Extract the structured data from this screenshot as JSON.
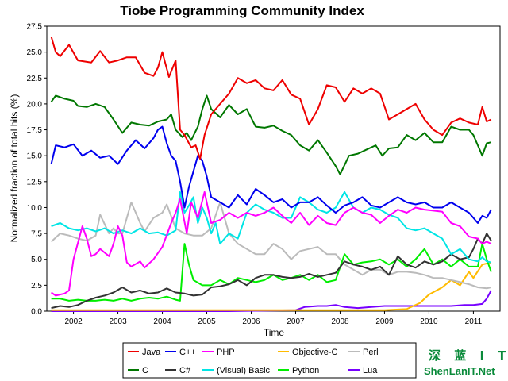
{
  "watermark": {
    "cn": "深 蓝 I T",
    "en": "ShenLanIT.Net"
  },
  "chart_data": {
    "type": "line",
    "title": "Tiobe Programming Community Index",
    "xlabel": "Time",
    "ylabel": "Normalized fraction of total hits (%)",
    "xlim": [
      2001.4,
      2011.6
    ],
    "ylim": [
      0,
      27.5
    ],
    "xticks": [
      2002,
      2003,
      2004,
      2005,
      2006,
      2007,
      2008,
      2009,
      2010,
      2011
    ],
    "xtick_labels": [
      "2002",
      "2003",
      "2004",
      "2005",
      "2006",
      "2007",
      "2008",
      "2009",
      "2010",
      "2011"
    ],
    "yticks": [
      0,
      2.5,
      5,
      7.5,
      10,
      12.5,
      15,
      17.5,
      20,
      22.5,
      25,
      27.5
    ],
    "ytick_labels": [
      "0.0",
      "2.5",
      "5.0",
      "7.5",
      "10.0",
      "12.5",
      "15.0",
      "17.5",
      "20.0",
      "22.5",
      "25.0",
      "27.5"
    ],
    "grid": false,
    "legend_position": "bottom",
    "series": [
      {
        "name": "Java",
        "color": "#ee0000",
        "x": [
          2001.5,
          2001.6,
          2001.7,
          2001.9,
          2002.1,
          2002.4,
          2002.6,
          2002.8,
          2003.0,
          2003.2,
          2003.4,
          2003.6,
          2003.8,
          2003.9,
          2004.0,
          2004.15,
          2004.3,
          2004.4,
          2004.5,
          2004.65,
          2004.75,
          2004.85,
          2004.95,
          2005.1,
          2005.3,
          2005.5,
          2005.7,
          2005.9,
          2006.1,
          2006.3,
          2006.5,
          2006.7,
          2006.9,
          2007.1,
          2007.3,
          2007.5,
          2007.7,
          2007.9,
          2008.1,
          2008.3,
          2008.5,
          2008.7,
          2008.9,
          2009.1,
          2009.3,
          2009.5,
          2009.7,
          2009.9,
          2010.1,
          2010.3,
          2010.5,
          2010.7,
          2010.9,
          2011.1,
          2011.2,
          2011.3,
          2011.4
        ],
        "y": [
          26.5,
          25.0,
          24.6,
          25.7,
          24.2,
          24.0,
          25.1,
          24.0,
          24.2,
          24.5,
          24.5,
          23.0,
          22.7,
          23.5,
          25.0,
          22.6,
          24.2,
          17.5,
          17.0,
          15.8,
          16.0,
          14.7,
          17.0,
          19.0,
          20.0,
          21.0,
          22.5,
          22.0,
          22.3,
          21.5,
          21.3,
          22.3,
          20.9,
          20.5,
          18.0,
          19.5,
          21.8,
          21.6,
          20.2,
          21.5,
          21.0,
          21.5,
          21.0,
          18.5,
          19.0,
          19.5,
          20.0,
          18.5,
          17.5,
          17.0,
          18.2,
          18.6,
          18.2,
          18.0,
          19.7,
          18.3,
          18.5
        ]
      },
      {
        "name": "C",
        "color": "#007700",
        "x": [
          2001.5,
          2001.6,
          2001.8,
          2002.0,
          2002.1,
          2002.3,
          2002.5,
          2002.7,
          2002.9,
          2003.1,
          2003.3,
          2003.5,
          2003.7,
          2003.9,
          2004.1,
          2004.2,
          2004.3,
          2004.45,
          2004.55,
          2004.65,
          2004.8,
          2004.9,
          2005.0,
          2005.1,
          2005.3,
          2005.5,
          2005.7,
          2005.9,
          2006.1,
          2006.3,
          2006.5,
          2006.7,
          2006.9,
          2007.1,
          2007.3,
          2007.5,
          2007.7,
          2007.9,
          2008.0,
          2008.2,
          2008.4,
          2008.6,
          2008.8,
          2008.95,
          2009.1,
          2009.3,
          2009.5,
          2009.7,
          2009.9,
          2010.1,
          2010.3,
          2010.5,
          2010.7,
          2010.9,
          2011.0,
          2011.1,
          2011.2,
          2011.3,
          2011.4
        ],
        "y": [
          20.2,
          20.8,
          20.5,
          20.3,
          19.8,
          19.7,
          20.0,
          19.7,
          18.5,
          17.2,
          18.2,
          18.0,
          17.9,
          18.3,
          18.5,
          19.0,
          17.5,
          16.8,
          17.2,
          16.5,
          17.8,
          19.5,
          20.8,
          19.5,
          18.7,
          19.9,
          19.0,
          19.5,
          17.8,
          17.7,
          17.9,
          17.4,
          17.0,
          16.0,
          15.5,
          16.5,
          15.3,
          14.0,
          13.2,
          15.0,
          15.2,
          15.6,
          16.0,
          15.0,
          15.7,
          15.8,
          17.0,
          16.5,
          17.2,
          16.3,
          16.3,
          17.8,
          17.5,
          17.5,
          17.0,
          16.0,
          15.0,
          16.2,
          16.3
        ]
      },
      {
        "name": "C++",
        "color": "#0000ee",
        "x": [
          2001.5,
          2001.6,
          2001.8,
          2002.0,
          2002.2,
          2002.4,
          2002.6,
          2002.8,
          2003.0,
          2003.2,
          2003.4,
          2003.6,
          2003.8,
          2003.9,
          2004.0,
          2004.1,
          2004.2,
          2004.3,
          2004.4,
          2004.5,
          2004.6,
          2004.7,
          2004.8,
          2004.9,
          2005.0,
          2005.1,
          2005.3,
          2005.5,
          2005.7,
          2005.9,
          2006.1,
          2006.3,
          2006.5,
          2006.7,
          2006.9,
          2007.1,
          2007.3,
          2007.5,
          2007.7,
          2007.9,
          2008.1,
          2008.3,
          2008.5,
          2008.7,
          2008.9,
          2009.1,
          2009.3,
          2009.5,
          2009.7,
          2009.9,
          2010.1,
          2010.3,
          2010.5,
          2010.7,
          2010.9,
          2011.1,
          2011.2,
          2011.3,
          2011.4
        ],
        "y": [
          14.2,
          16.0,
          15.8,
          16.1,
          15.0,
          15.5,
          14.8,
          15.0,
          14.2,
          15.5,
          16.5,
          15.7,
          16.7,
          17.5,
          17.8,
          16.2,
          15.0,
          14.5,
          12.5,
          10.0,
          12.0,
          13.5,
          15.0,
          14.5,
          13.0,
          11.0,
          10.5,
          10.0,
          11.2,
          10.3,
          11.8,
          11.2,
          10.5,
          10.8,
          10.0,
          10.5,
          10.5,
          11.0,
          10.2,
          9.5,
          10.2,
          10.5,
          11.0,
          10.2,
          10.0,
          10.5,
          11.0,
          10.5,
          10.3,
          10.5,
          10.0,
          10.0,
          10.5,
          10.0,
          9.5,
          8.5,
          9.2,
          9.0,
          9.8
        ]
      },
      {
        "name": "C#",
        "color": "#333333",
        "x": [
          2001.5,
          2001.7,
          2001.9,
          2002.1,
          2002.3,
          2002.5,
          2002.7,
          2002.9,
          2003.1,
          2003.3,
          2003.5,
          2003.7,
          2003.9,
          2004.1,
          2004.3,
          2004.5,
          2004.7,
          2004.9,
          2005.1,
          2005.3,
          2005.5,
          2005.7,
          2005.9,
          2006.1,
          2006.3,
          2006.5,
          2006.7,
          2006.9,
          2007.1,
          2007.3,
          2007.5,
          2007.7,
          2007.9,
          2008.1,
          2008.3,
          2008.5,
          2008.7,
          2008.9,
          2009.1,
          2009.3,
          2009.5,
          2009.7,
          2009.9,
          2010.1,
          2010.3,
          2010.5,
          2010.7,
          2010.9,
          2011.0,
          2011.1,
          2011.2,
          2011.3,
          2011.4
        ],
        "y": [
          0.3,
          0.5,
          0.4,
          0.6,
          1.0,
          1.3,
          1.5,
          1.8,
          2.3,
          1.8,
          2.0,
          1.7,
          1.8,
          2.2,
          1.8,
          1.7,
          1.5,
          1.6,
          2.3,
          2.4,
          2.6,
          3.0,
          2.5,
          3.2,
          3.5,
          3.5,
          3.3,
          3.2,
          3.3,
          3.6,
          3.3,
          3.5,
          3.7,
          4.8,
          4.5,
          4.3,
          4.0,
          4.3,
          3.5,
          5.3,
          4.5,
          4.2,
          4.8,
          4.5,
          4.8,
          5.5,
          5.0,
          5.2,
          6.0,
          7.0,
          6.5,
          7.5,
          6.8
        ]
      },
      {
        "name": "PHP",
        "color": "#ff00ff",
        "x": [
          2001.5,
          2001.6,
          2001.8,
          2001.9,
          2002.0,
          2002.2,
          2002.3,
          2002.4,
          2002.5,
          2002.6,
          2002.8,
          2002.9,
          2003.0,
          2003.1,
          2003.2,
          2003.3,
          2003.5,
          2003.6,
          2003.8,
          2004.0,
          2004.2,
          2004.3,
          2004.4,
          2004.55,
          2004.65,
          2004.8,
          2004.95,
          2005.1,
          2005.3,
          2005.5,
          2005.7,
          2005.9,
          2006.1,
          2006.3,
          2006.5,
          2006.7,
          2006.9,
          2007.1,
          2007.3,
          2007.5,
          2007.7,
          2007.9,
          2008.1,
          2008.3,
          2008.5,
          2008.7,
          2008.9,
          2009.1,
          2009.3,
          2009.5,
          2009.7,
          2009.9,
          2010.1,
          2010.3,
          2010.5,
          2010.7,
          2010.9,
          2011.1,
          2011.2,
          2011.3,
          2011.4
        ],
        "y": [
          1.8,
          1.5,
          1.7,
          2.0,
          5.0,
          8.2,
          7.0,
          5.3,
          5.5,
          6.0,
          5.3,
          6.5,
          8.2,
          7.3,
          4.7,
          4.3,
          4.8,
          4.2,
          5.0,
          6.2,
          8.5,
          9.5,
          10.8,
          7.5,
          10.5,
          9.0,
          11.5,
          8.5,
          8.8,
          9.5,
          9.0,
          9.5,
          9.2,
          9.5,
          10.0,
          9.2,
          8.5,
          9.5,
          8.3,
          9.2,
          8.5,
          8.3,
          9.5,
          10.0,
          9.5,
          9.3,
          8.5,
          9.2,
          9.8,
          9.5,
          10.0,
          9.8,
          9.7,
          9.6,
          8.5,
          8.2,
          7.2,
          7.0,
          6.5,
          6.7,
          6.5
        ]
      },
      {
        "name": "(Visual) Basic",
        "color": "#00e5e5",
        "x": [
          2001.5,
          2001.7,
          2001.9,
          2002.1,
          2002.3,
          2002.5,
          2002.7,
          2002.9,
          2003.1,
          2003.3,
          2003.5,
          2003.7,
          2003.9,
          2004.1,
          2004.3,
          2004.4,
          2004.5,
          2004.6,
          2004.7,
          2004.8,
          2004.9,
          2005.0,
          2005.1,
          2005.2,
          2005.3,
          2005.5,
          2005.7,
          2005.9,
          2006.1,
          2006.3,
          2006.5,
          2006.7,
          2006.9,
          2007.1,
          2007.3,
          2007.5,
          2007.7,
          2007.9,
          2008.1,
          2008.3,
          2008.5,
          2008.7,
          2008.9,
          2009.1,
          2009.3,
          2009.5,
          2009.7,
          2009.9,
          2010.1,
          2010.3,
          2010.5,
          2010.7,
          2010.9,
          2011.1,
          2011.2,
          2011.3,
          2011.4
        ],
        "y": [
          8.2,
          8.5,
          8.0,
          7.8,
          8.0,
          7.7,
          8.0,
          7.5,
          7.8,
          7.5,
          8.0,
          7.5,
          7.6,
          7.3,
          7.8,
          11.5,
          9.5,
          10.2,
          11.0,
          8.5,
          10.0,
          9.0,
          7.5,
          8.5,
          6.5,
          7.5,
          7.0,
          9.5,
          10.3,
          9.8,
          9.5,
          9.0,
          9.0,
          11.0,
          10.5,
          9.8,
          9.5,
          10.0,
          11.5,
          10.0,
          9.5,
          10.0,
          9.8,
          9.3,
          9.0,
          8.0,
          7.8,
          8.0,
          7.5,
          7.0,
          5.5,
          6.0,
          5.0,
          4.8,
          5.2,
          4.8,
          4.7
        ]
      },
      {
        "name": "Objective-C",
        "color": "#ffbb00",
        "x": [
          2001.5,
          2002.5,
          2003.5,
          2004.5,
          2005.5,
          2006.5,
          2007.5,
          2008.5,
          2009.0,
          2009.5,
          2009.8,
          2010.0,
          2010.3,
          2010.5,
          2010.7,
          2010.9,
          2011.0,
          2011.2,
          2011.4
        ],
        "y": [
          0.1,
          0.1,
          0.1,
          0.1,
          0.1,
          0.1,
          0.1,
          0.1,
          0.1,
          0.2,
          0.8,
          1.6,
          2.3,
          3.0,
          2.5,
          3.8,
          3.2,
          4.5,
          4.7
        ]
      },
      {
        "name": "Python",
        "color": "#00ee00",
        "x": [
          2001.5,
          2001.7,
          2001.9,
          2002.1,
          2002.3,
          2002.5,
          2002.7,
          2002.9,
          2003.1,
          2003.3,
          2003.5,
          2003.7,
          2003.9,
          2004.1,
          2004.3,
          2004.4,
          2004.5,
          2004.6,
          2004.7,
          2004.9,
          2005.1,
          2005.3,
          2005.5,
          2005.7,
          2005.9,
          2006.1,
          2006.3,
          2006.5,
          2006.7,
          2006.9,
          2007.1,
          2007.3,
          2007.5,
          2007.7,
          2007.9,
          2008.1,
          2008.3,
          2008.5,
          2008.7,
          2008.9,
          2009.1,
          2009.3,
          2009.5,
          2009.7,
          2009.9,
          2010.1,
          2010.3,
          2010.5,
          2010.7,
          2010.9,
          2011.1,
          2011.2,
          2011.3,
          2011.4
        ],
        "y": [
          1.2,
          1.2,
          1.0,
          1.1,
          1.0,
          1.0,
          1.1,
          1.0,
          1.2,
          1.0,
          1.2,
          1.3,
          1.2,
          1.4,
          1.1,
          1.0,
          6.5,
          4.5,
          3.0,
          2.5,
          2.5,
          3.0,
          2.6,
          3.2,
          3.0,
          2.8,
          3.0,
          3.5,
          3.0,
          3.2,
          3.5,
          3.0,
          3.5,
          2.8,
          3.0,
          5.5,
          4.5,
          4.7,
          4.8,
          5.0,
          4.5,
          5.0,
          4.3,
          5.0,
          6.0,
          4.5,
          5.0,
          4.3,
          5.0,
          4.3,
          4.3,
          6.5,
          5.0,
          3.8
        ]
      },
      {
        "name": "Perl",
        "color": "#bbbbbb",
        "x": [
          2001.5,
          2001.7,
          2001.9,
          2002.1,
          2002.3,
          2002.5,
          2002.6,
          2002.8,
          2002.9,
          2003.0,
          2003.1,
          2003.3,
          2003.5,
          2003.6,
          2003.8,
          2004.0,
          2004.1,
          2004.3,
          2004.5,
          2004.7,
          2004.9,
          2005.1,
          2005.3,
          2005.5,
          2005.7,
          2005.9,
          2006.1,
          2006.3,
          2006.5,
          2006.7,
          2006.9,
          2007.1,
          2007.3,
          2007.5,
          2007.7,
          2007.9,
          2008.1,
          2008.3,
          2008.5,
          2008.7,
          2008.9,
          2009.1,
          2009.3,
          2009.5,
          2009.7,
          2009.9,
          2010.1,
          2010.3,
          2010.5,
          2010.7,
          2010.9,
          2011.1,
          2011.3,
          2011.4
        ],
        "y": [
          6.7,
          7.5,
          7.3,
          7.0,
          6.8,
          7.3,
          9.3,
          7.5,
          8.0,
          7.5,
          7.5,
          10.5,
          8.5,
          7.7,
          9.0,
          9.5,
          10.3,
          8.0,
          7.5,
          7.3,
          7.3,
          8.0,
          10.5,
          7.5,
          6.5,
          6.0,
          5.5,
          5.5,
          6.5,
          6.0,
          5.0,
          5.8,
          6.0,
          6.2,
          5.5,
          5.5,
          4.5,
          4.0,
          3.5,
          4.0,
          4.0,
          3.5,
          3.8,
          3.8,
          3.7,
          3.5,
          3.2,
          3.2,
          3.0,
          2.8,
          2.6,
          2.3,
          2.2,
          2.3
        ]
      },
      {
        "name": "Lua",
        "color": "#7700ff",
        "x": [
          2001.5,
          2003.5,
          2005.5,
          2007.0,
          2007.2,
          2007.5,
          2007.7,
          2007.9,
          2008.1,
          2008.4,
          2008.7,
          2009.0,
          2009.3,
          2009.6,
          2009.9,
          2010.2,
          2010.5,
          2010.8,
          2011.0,
          2011.2,
          2011.3,
          2011.4
        ],
        "y": [
          0.0,
          0.0,
          0.0,
          0.1,
          0.4,
          0.5,
          0.5,
          0.6,
          0.4,
          0.3,
          0.4,
          0.5,
          0.5,
          0.5,
          0.5,
          0.5,
          0.5,
          0.6,
          0.6,
          0.7,
          1.2,
          2.0
        ]
      }
    ]
  }
}
